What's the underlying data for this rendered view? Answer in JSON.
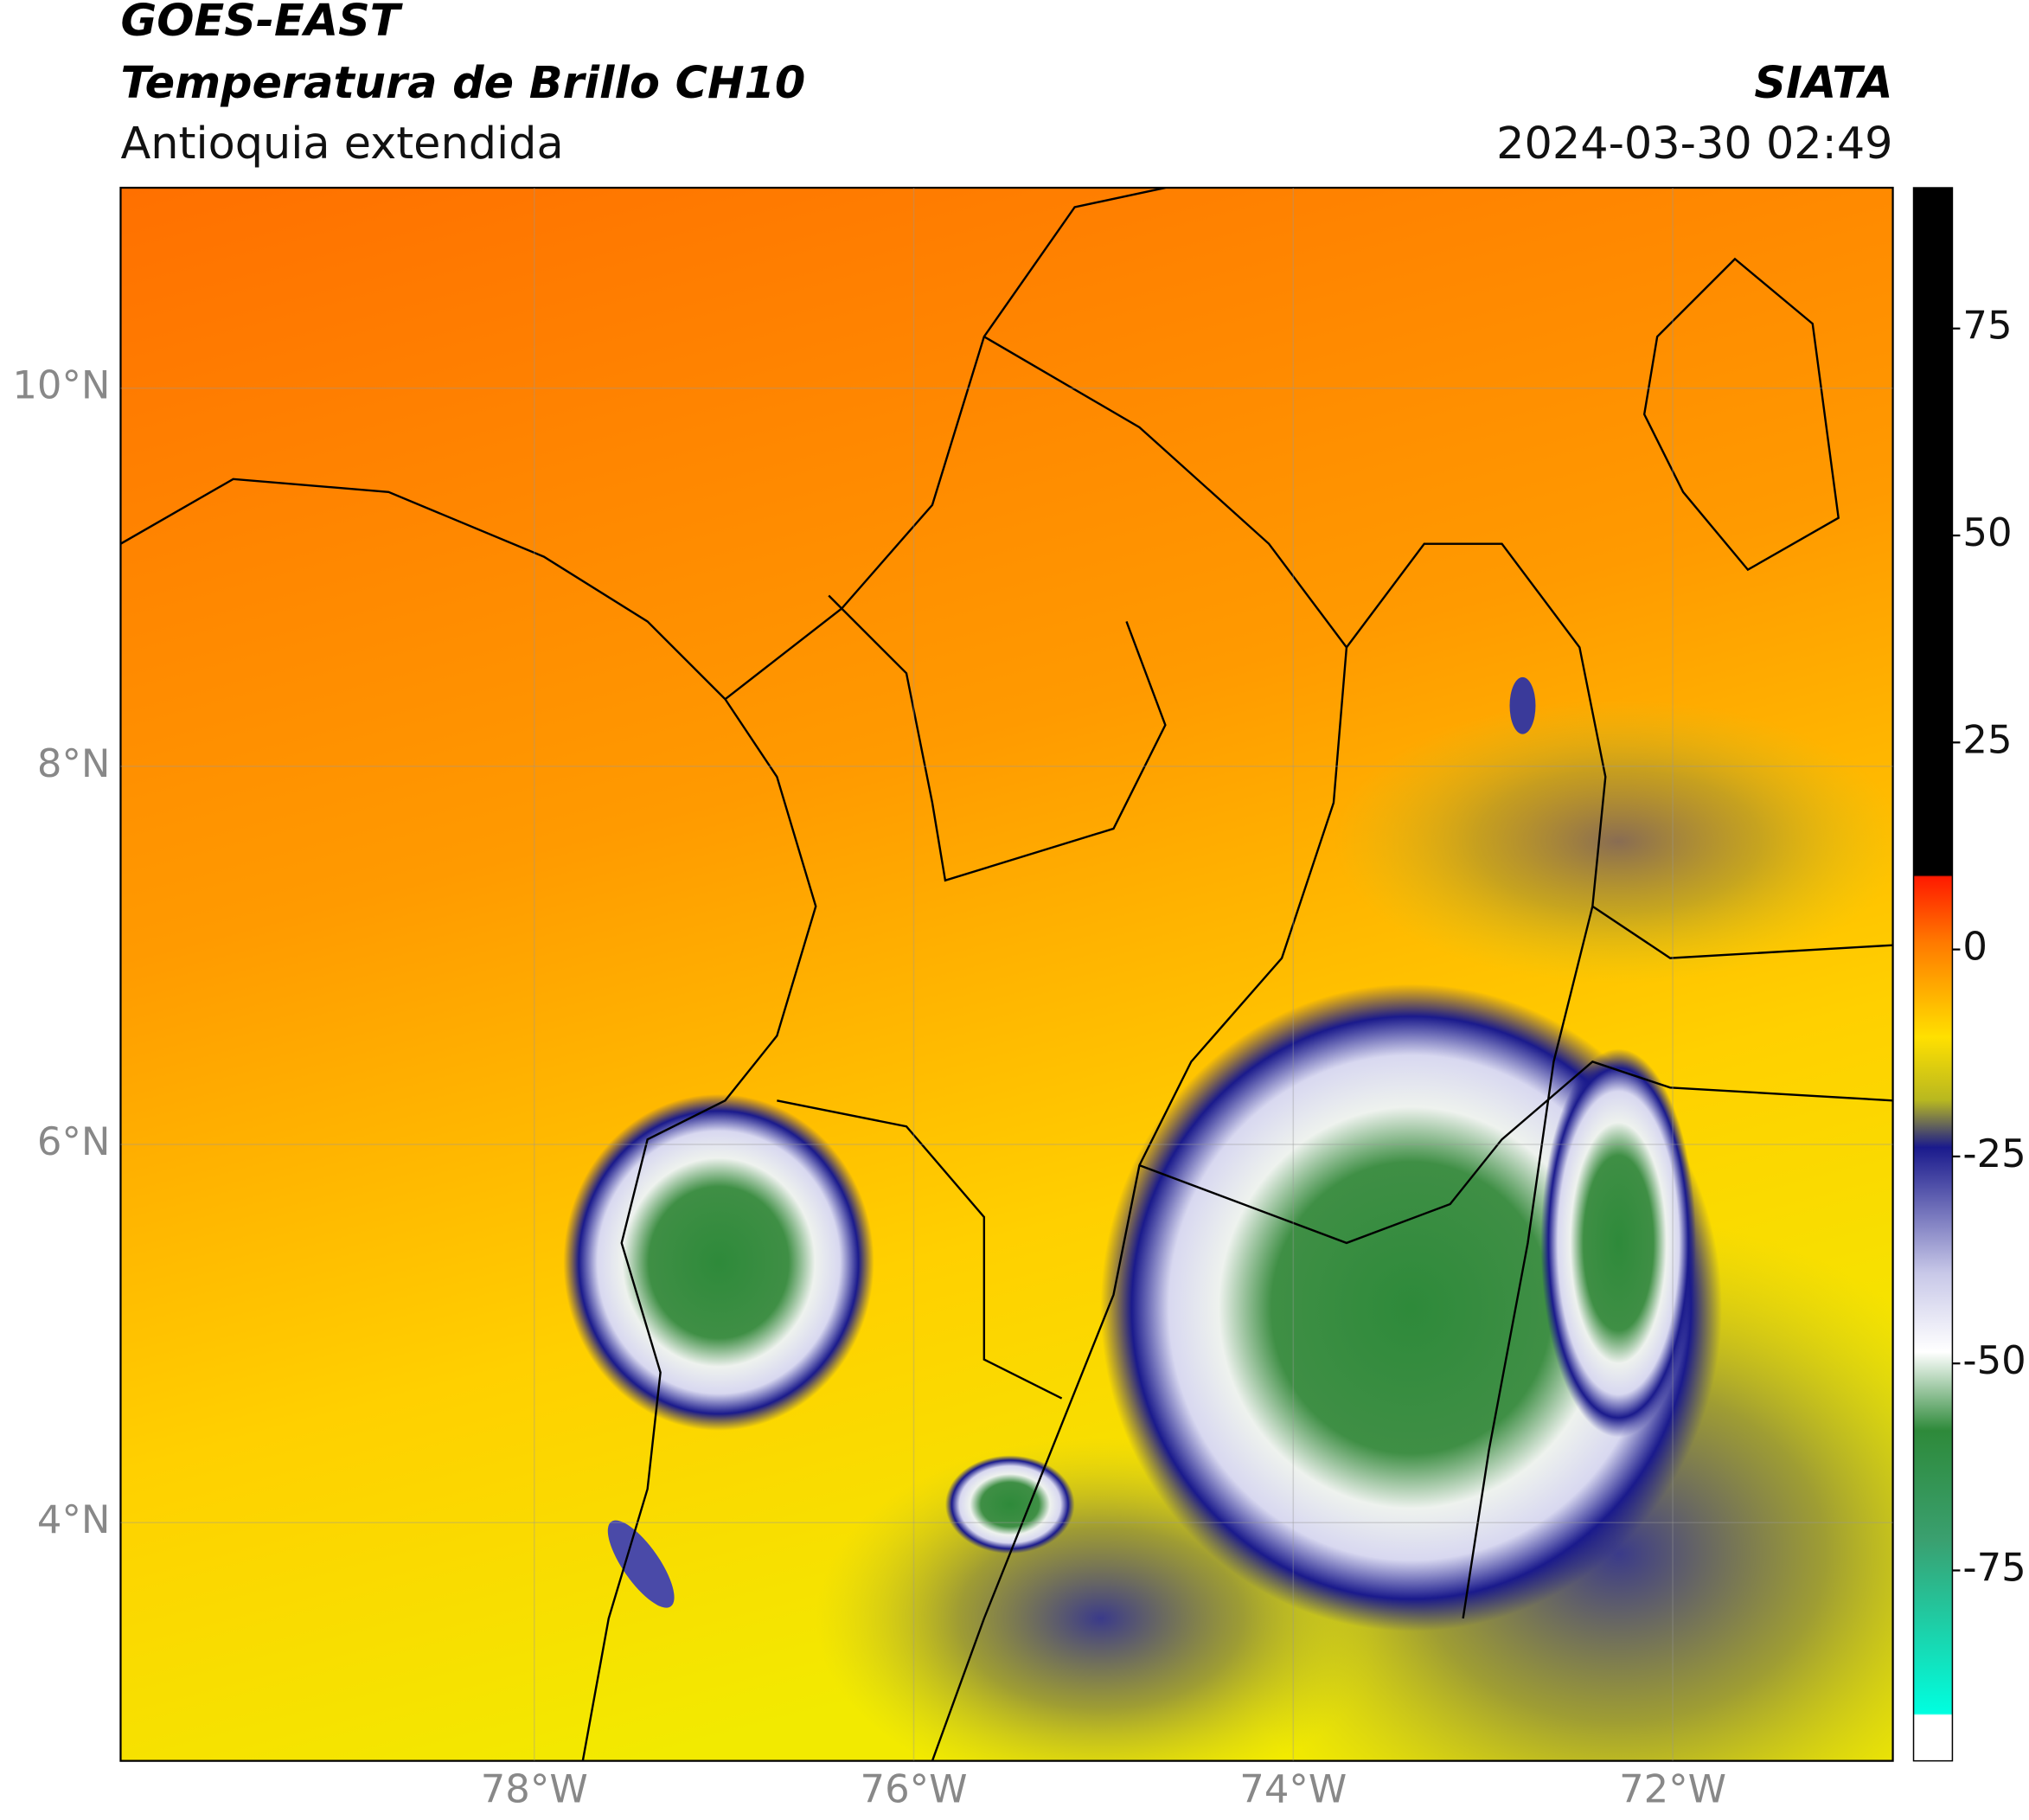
{
  "header": {
    "title": "GOES-EAST",
    "subtitle": "Temperatura de Brillo CH10",
    "region": "Antioquia extendida",
    "source": "SIATA",
    "datetime": "2024-03-30 02:49"
  },
  "map": {
    "xlim": [
      -80.18,
      -70.84
    ],
    "ylim": [
      2.74,
      11.06
    ],
    "xticks": [
      {
        "value": -78,
        "label": "78°W"
      },
      {
        "value": -76,
        "label": "76°W"
      },
      {
        "value": -74,
        "label": "74°W"
      },
      {
        "value": -72,
        "label": "72°W"
      }
    ],
    "yticks": [
      {
        "value": 4,
        "label": "4°N"
      },
      {
        "value": 6,
        "label": "6°N"
      },
      {
        "value": 8,
        "label": "8°N"
      },
      {
        "value": 10,
        "label": "10°N"
      }
    ],
    "grid": true
  },
  "colorbar": {
    "lim": [
      -98,
      92
    ],
    "ticks": [
      75,
      50,
      25,
      0,
      -25,
      -50,
      -75
    ]
  }
}
